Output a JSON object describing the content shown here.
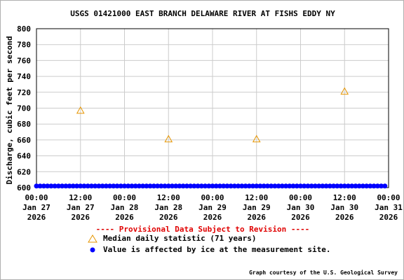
{
  "chart_data": {
    "type": "scatter",
    "title": "USGS 01421000 EAST BRANCH DELAWARE RIVER AT FISHS EDDY NY",
    "ylabel": "Discharge, cubic feet per second",
    "xlabel": "",
    "ylim": [
      600,
      800
    ],
    "yticks": [
      600,
      620,
      640,
      660,
      680,
      700,
      720,
      740,
      760,
      780,
      800
    ],
    "xlim": [
      "2026-01-27 00:00",
      "2026-01-31 00:00"
    ],
    "xticks": [
      {
        "time": "00:00",
        "date": "Jan 27",
        "year": "2026"
      },
      {
        "time": "12:00",
        "date": "Jan 27",
        "year": "2026"
      },
      {
        "time": "00:00",
        "date": "Jan 28",
        "year": "2026"
      },
      {
        "time": "12:00",
        "date": "Jan 28",
        "year": "2026"
      },
      {
        "time": "00:00",
        "date": "Jan 29",
        "year": "2026"
      },
      {
        "time": "12:00",
        "date": "Jan 29",
        "year": "2026"
      },
      {
        "time": "00:00",
        "date": "Jan 30",
        "year": "2026"
      },
      {
        "time": "12:00",
        "date": "Jan 30",
        "year": "2026"
      },
      {
        "time": "00:00",
        "date": "Jan 31",
        "year": "2026"
      }
    ],
    "grid": true,
    "series": [
      {
        "name": "Median daily statistic (71 years)",
        "marker": "triangle",
        "color": "#e69500",
        "points": [
          {
            "x": "2026-01-27 12:00",
            "y": 697
          },
          {
            "x": "2026-01-28 12:00",
            "y": 661
          },
          {
            "x": "2026-01-29 12:00",
            "y": 661
          },
          {
            "x": "2026-01-30 12:00",
            "y": 721
          }
        ]
      },
      {
        "name": "Value is affected by ice at the measurement site.",
        "marker": "dot",
        "color": "#0000ff",
        "start": "2026-01-27 00:00",
        "end": "2026-01-30 23:00",
        "interval_hours": 1,
        "y": 602
      }
    ]
  },
  "provisional_note": "---- Provisional Data Subject to Revision ----",
  "courtesy": "Graph courtesy of the U.S. Geological Survey",
  "colors": {
    "grid": "#cccccc",
    "provisional": "#e00000",
    "median": "#e69500",
    "ice": "#0000ff"
  }
}
